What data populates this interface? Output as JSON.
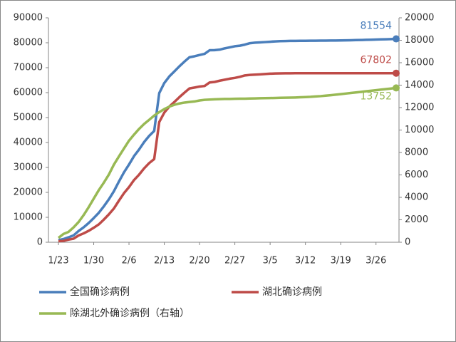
{
  "chart_data": {
    "type": "line",
    "categories": [
      "1/23",
      null,
      null,
      null,
      null,
      null,
      null,
      "1/30",
      null,
      null,
      null,
      null,
      null,
      null,
      "2/6",
      null,
      null,
      null,
      null,
      null,
      null,
      "2/13",
      null,
      null,
      null,
      null,
      null,
      null,
      "2/20",
      null,
      null,
      null,
      null,
      null,
      null,
      "2/27",
      null,
      null,
      null,
      null,
      null,
      null,
      "3/5",
      null,
      null,
      null,
      null,
      null,
      null,
      "3/12",
      null,
      null,
      null,
      null,
      null,
      null,
      "3/19",
      null,
      null,
      null,
      null,
      null,
      null,
      "3/26",
      null,
      null,
      null,
      null
    ],
    "series": [
      {
        "name": "全国确诊病例",
        "color": "#4a7ebb",
        "values": [
          830,
          1287,
          1975,
          2744,
          4515,
          5974,
          7711,
          9692,
          11791,
          14380,
          17205,
          20438,
          24324,
          28018,
          31161,
          34546,
          37198,
          40171,
          42638,
          44653,
          59804,
          63851,
          66492,
          68500,
          70548,
          72436,
          74185,
          74576,
          75077,
          75550,
          77001,
          77022,
          77241,
          77754,
          78166,
          78600,
          78824,
          79251,
          79824,
          80026,
          80151,
          80270,
          80409,
          80552,
          80651,
          80695,
          80735,
          80754,
          80778,
          80793,
          80813,
          80824,
          80844,
          80860,
          80881,
          80894,
          80928,
          80967,
          81008,
          81054,
          81093,
          81171,
          81218,
          81285,
          81340,
          81394,
          81470,
          81554
        ]
      },
      {
        "name": "湖北确诊病例",
        "color": "#be4b48",
        "values": [
          444,
          549,
          1052,
          1423,
          2714,
          3554,
          4586,
          5806,
          7153,
          9074,
          11177,
          13522,
          16678,
          19665,
          22112,
          24953,
          27100,
          29631,
          31728,
          33366,
          48206,
          51986,
          54406,
          56249,
          58182,
          59989,
          61682,
          62031,
          62442,
          62662,
          64084,
          64287,
          64786,
          65187,
          65596,
          65914,
          66337,
          66907,
          67103,
          67217,
          67332,
          67466,
          67592,
          67666,
          67707,
          67743,
          67760,
          67773,
          67781,
          67786,
          67790,
          67794,
          67798,
          67799,
          67800,
          67800,
          67800,
          67800,
          67800,
          67800,
          67801,
          67801,
          67801,
          67801,
          67801,
          67802,
          67802,
          67802
        ]
      },
      {
        "name": "除湖北外确诊病例（右轴）",
        "color": "#98b954",
        "axis": "y2",
        "values": [
          386,
          738,
          923,
          1321,
          1801,
          2420,
          3125,
          3886,
          4638,
          5306,
          6028,
          6916,
          7646,
          8353,
          9049,
          9593,
          10098,
          10540,
          10910,
          11287,
          11598,
          11865,
          12086,
          12251,
          12366,
          12447,
          12503,
          12545,
          12635,
          12688,
          12717,
          12735,
          12755,
          12767,
          12770,
          12786,
          12790,
          12797,
          12810,
          12820,
          12830,
          12840,
          12850,
          12860,
          12870,
          12880,
          12890,
          12900,
          12920,
          12940,
          12960,
          12990,
          13020,
          13060,
          13100,
          13150,
          13200,
          13250,
          13300,
          13350,
          13400,
          13450,
          13500,
          13550,
          13600,
          13650,
          13700,
          13752
        ]
      }
    ],
    "ylim": [
      0,
      90000
    ],
    "yticks": [
      0,
      10000,
      20000,
      30000,
      40000,
      50000,
      60000,
      70000,
      80000,
      90000
    ],
    "y2lim": [
      0,
      20000
    ],
    "y2ticks": [
      0,
      2000,
      4000,
      6000,
      8000,
      10000,
      12000,
      14000,
      16000,
      18000,
      20000
    ],
    "grid": false,
    "legend": "bottom"
  }
}
